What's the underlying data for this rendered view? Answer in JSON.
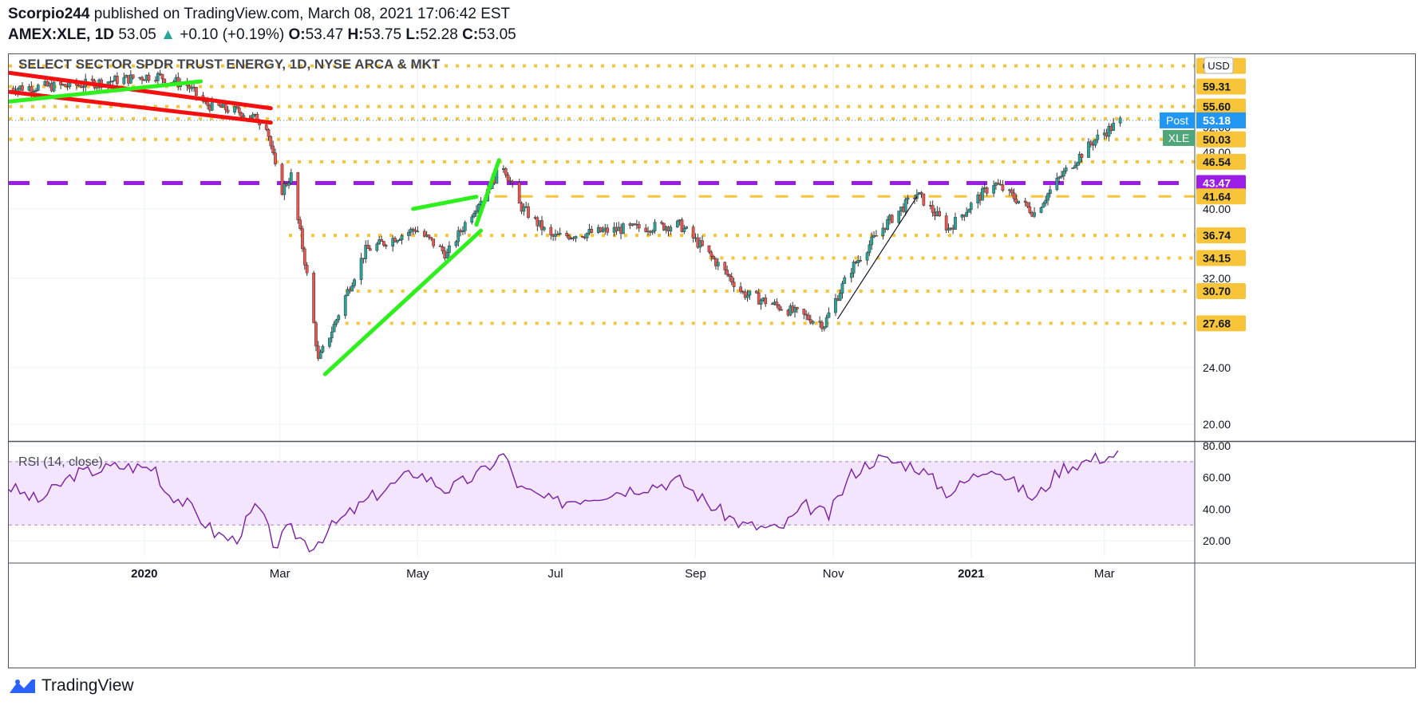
{
  "header": {
    "line1": {
      "user": "Scorpio244",
      "rest": "published on TradingView.com, March 08, 2021 17:06:42 EST"
    },
    "line2": {
      "symbol": "AMEX:XLE, 1D",
      "price": "53.05",
      "arrow": "▲",
      "change": "+0.10 (+0.19%)",
      "o_label": "O:",
      "o_value": "53.47",
      "h_label": "H:",
      "h_value": "53.75",
      "l_label": "L:",
      "l_value": "52.28",
      "c_label": "C:",
      "c_value": "53.05"
    }
  },
  "colors": {
    "up_candle": "#26a69a",
    "down_candle": "#ef5350",
    "level_line": "#f7c43a",
    "pivot_line": "#9c1ee6",
    "red_trend": "#f21010",
    "green_trend": "#2ef01d",
    "rsi_line": "#7a1fa2",
    "rsi_band": "#f3e5fd",
    "post_badge": "#2196f3",
    "xle_badge": "#4fa67a"
  },
  "chart_data": [
    {
      "type": "candlestick",
      "title": "SELECT SECTOR SPDR TRUST ENERGY, 1D, NYSE ARCA & MKT",
      "currency": "USD",
      "scale": "log",
      "ylim": [
        19.0,
        65.8
      ],
      "y_ticks": [
        "52.00",
        "48.00",
        "40.00",
        "32.00",
        "24.00",
        "20.00"
      ],
      "x_ticks": [
        "2020",
        "Mar",
        "May",
        "Jul",
        "Sep",
        "Nov",
        "2021",
        "Mar"
      ],
      "x_range": [
        "2019-11-02",
        "2021-04-10"
      ],
      "price_anchors": [
        [
          "2019-11-01",
          59.0
        ],
        [
          "2019-12-01",
          59.5
        ],
        [
          "2020-01-06",
          61.5
        ],
        [
          "2020-01-20",
          59.5
        ],
        [
          "2020-01-28",
          56.0
        ],
        [
          "2020-02-14",
          54.5
        ],
        [
          "2020-02-24",
          52.5
        ],
        [
          "2020-03-01",
          42.0
        ],
        [
          "2020-03-06",
          44.5
        ],
        [
          "2020-03-09",
          38.5
        ],
        [
          "2020-03-18",
          24.5
        ],
        [
          "2020-03-25",
          27.5
        ],
        [
          "2020-04-08",
          35.0
        ],
        [
          "2020-04-30",
          37.5
        ],
        [
          "2020-05-14",
          34.5
        ],
        [
          "2020-06-08",
          46.0
        ],
        [
          "2020-06-15",
          40.5
        ],
        [
          "2020-06-29",
          36.5
        ],
        [
          "2020-07-31",
          37.5
        ],
        [
          "2020-08-25",
          38.0
        ],
        [
          "2020-09-22",
          30.5
        ],
        [
          "2020-10-28",
          27.6
        ],
        [
          "2020-11-09",
          33.0
        ],
        [
          "2020-11-24",
          38.0
        ],
        [
          "2020-12-08",
          42.0
        ],
        [
          "2020-12-22",
          37.5
        ],
        [
          "2021-01-11",
          43.5
        ],
        [
          "2021-01-29",
          39.5
        ],
        [
          "2021-02-10",
          44.5
        ],
        [
          "2021-02-25",
          50.0
        ],
        [
          "2021-03-08",
          53.05
        ]
      ],
      "horizontal_levels": [
        {
          "value": 63.37,
          "label": "63.37",
          "style": "dotted",
          "start": "2019-11-02"
        },
        {
          "value": 59.31,
          "label": "59.31",
          "style": "dotted",
          "start": "2019-11-02"
        },
        {
          "value": 55.6,
          "label": "55.60",
          "style": "dotted",
          "start": "2019-11-02"
        },
        {
          "value": 53.46,
          "label": "53.46",
          "style": "dotted",
          "start": "2019-11-02"
        },
        {
          "value": 50.03,
          "label": "50.03",
          "style": "dotted",
          "start": "2019-11-02"
        },
        {
          "value": 46.54,
          "label": "46.54",
          "style": "dotted",
          "start": "2020-02-28"
        },
        {
          "value": 43.47,
          "label": "43.47",
          "style": "dashed-pivot",
          "start": "2019-11-02"
        },
        {
          "value": 41.64,
          "label": "41.64",
          "style": "dashed",
          "start": "2020-06-04"
        },
        {
          "value": 36.74,
          "label": "36.74",
          "style": "dotted",
          "start": "2020-03-05"
        },
        {
          "value": 34.15,
          "label": "34.15",
          "style": "dotted",
          "start": "2020-09-07"
        },
        {
          "value": 30.7,
          "label": "30.70",
          "style": "dotted",
          "start": "2020-03-30"
        },
        {
          "value": 27.68,
          "label": "27.68",
          "style": "dotted",
          "start": "2020-03-30"
        }
      ],
      "trend_lines": [
        {
          "color": "red",
          "from": [
            "2019-11-02",
            58.3
          ],
          "to": [
            "2020-02-26",
            52.8
          ]
        },
        {
          "color": "red",
          "from": [
            "2019-11-02",
            62.0
          ],
          "to": [
            "2020-02-26",
            55.3
          ]
        },
        {
          "color": "green",
          "from": [
            "2019-11-02",
            56.5
          ],
          "to": [
            "2020-01-26",
            60.3
          ]
        },
        {
          "color": "green",
          "from": [
            "2020-03-21",
            23.5
          ],
          "to": [
            "2020-05-29",
            37.3
          ]
        },
        {
          "color": "green",
          "from": [
            "2020-04-29",
            40.0
          ],
          "to": [
            "2020-05-27",
            41.6
          ]
        },
        {
          "color": "green",
          "from": [
            "2020-05-27",
            38.0
          ],
          "to": [
            "2020-06-06",
            46.8
          ]
        },
        {
          "color": "black",
          "from": [
            "2020-11-03",
            28.1
          ],
          "to": [
            "2020-12-08",
            41.6
          ]
        }
      ],
      "post_badge": {
        "label": "Post",
        "value": "53.18"
      },
      "symbol_badge": "XLE"
    },
    {
      "type": "line",
      "title": "RSI (14, close)",
      "ylim": [
        10,
        82
      ],
      "y_ticks": [
        "80.00",
        "60.00",
        "40.00",
        "20.00"
      ],
      "bands": [
        30,
        70
      ],
      "rsi_anchors": [
        [
          "2019-11-01",
          55
        ],
        [
          "2019-11-15",
          45
        ],
        [
          "2019-12-01",
          62
        ],
        [
          "2019-12-20",
          67
        ],
        [
          "2020-01-06",
          66
        ],
        [
          "2020-01-10",
          52
        ],
        [
          "2020-01-20",
          43
        ],
        [
          "2020-02-01",
          25
        ],
        [
          "2020-02-10",
          20
        ],
        [
          "2020-02-20",
          43
        ],
        [
          "2020-02-28",
          16
        ],
        [
          "2020-03-05",
          28
        ],
        [
          "2020-03-15",
          16
        ],
        [
          "2020-03-25",
          30
        ],
        [
          "2020-04-10",
          47
        ],
        [
          "2020-04-30",
          64
        ],
        [
          "2020-05-14",
          52
        ],
        [
          "2020-05-28",
          62
        ],
        [
          "2020-06-08",
          75
        ],
        [
          "2020-06-15",
          53
        ],
        [
          "2020-07-01",
          44
        ],
        [
          "2020-07-31",
          52
        ],
        [
          "2020-08-25",
          58
        ],
        [
          "2020-09-08",
          42
        ],
        [
          "2020-09-22",
          30
        ],
        [
          "2020-10-08",
          27
        ],
        [
          "2020-10-20",
          42
        ],
        [
          "2020-10-30",
          36
        ],
        [
          "2020-11-09",
          62
        ],
        [
          "2020-11-20",
          72
        ],
        [
          "2020-12-08",
          67
        ],
        [
          "2020-12-22",
          50
        ],
        [
          "2021-01-10",
          68
        ],
        [
          "2021-01-29",
          46
        ],
        [
          "2021-02-10",
          66
        ],
        [
          "2021-02-25",
          72
        ],
        [
          "2021-03-08",
          75
        ]
      ]
    }
  ]
}
